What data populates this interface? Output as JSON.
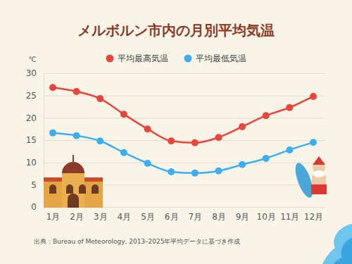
{
  "chart_data": {
    "type": "line",
    "title": "メルボルン市内の月別平均気温",
    "y_label": "℃",
    "source": "出典：Bureau of Meteorology, 2013–2025年平均データに基づき作成",
    "categories": [
      "1月",
      "2月",
      "3月",
      "4月",
      "5月",
      "6月",
      "7月",
      "8月",
      "9月",
      "10月",
      "11月",
      "12月"
    ],
    "series": [
      {
        "name": "平均最高気温",
        "color": "#e8453c",
        "marker": "circle",
        "values": [
          26.8,
          25.9,
          24.3,
          20.8,
          17.5,
          14.8,
          14.4,
          15.6,
          18.0,
          20.5,
          22.3,
          24.8
        ]
      },
      {
        "name": "平均最低気温",
        "color": "#3eaef0",
        "marker": "circle",
        "values": [
          16.6,
          16.0,
          14.8,
          12.2,
          9.8,
          7.9,
          7.6,
          8.1,
          9.5,
          10.9,
          12.8,
          14.5
        ]
      }
    ],
    "ylim": [
      0,
      30
    ],
    "yticks": [
      0,
      5,
      10,
      15,
      20,
      25,
      30
    ],
    "grid": true,
    "legend": "top"
  }
}
